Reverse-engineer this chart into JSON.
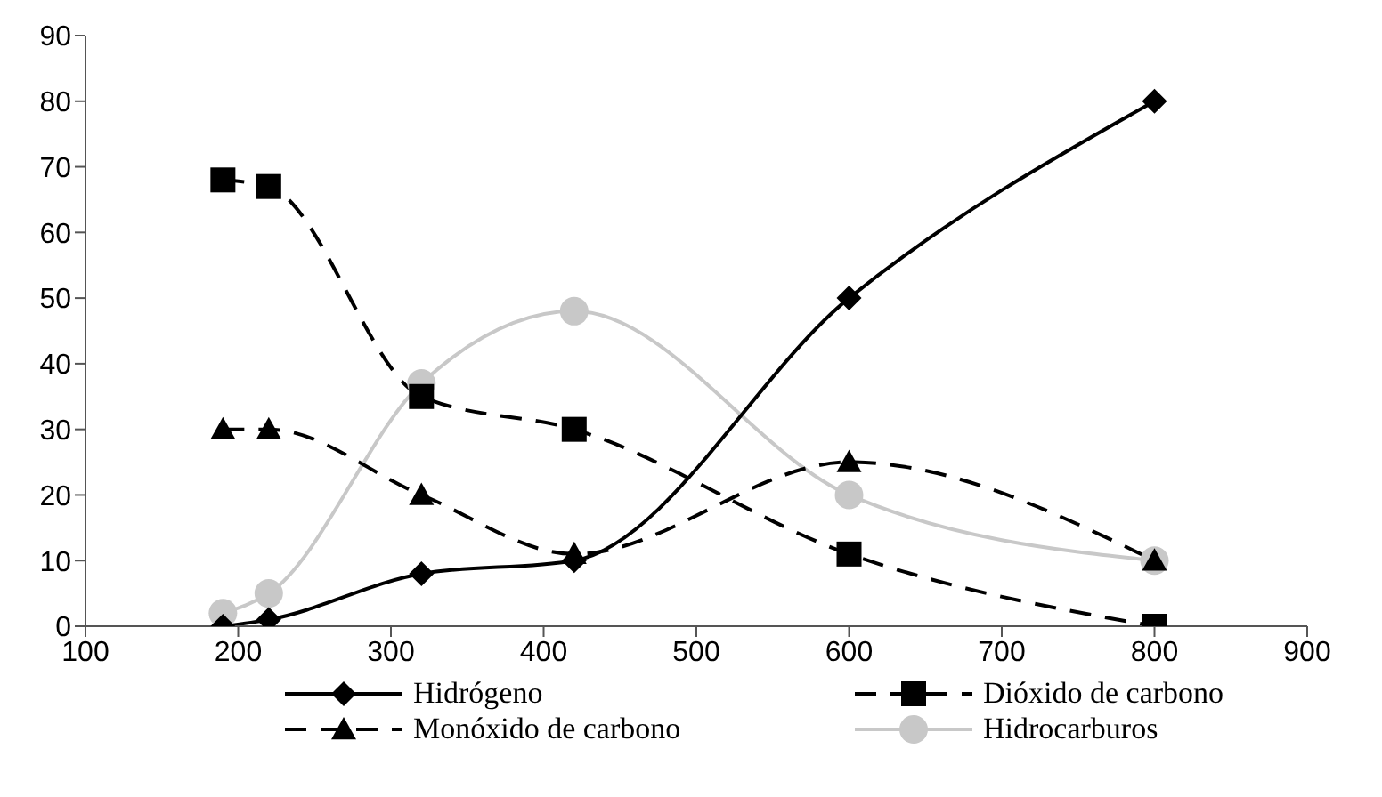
{
  "chart_data": {
    "type": "line",
    "x": [
      190,
      220,
      320,
      420,
      600,
      800
    ],
    "xlim": [
      100,
      900
    ],
    "xticks": [
      100,
      200,
      300,
      400,
      500,
      600,
      700,
      800,
      900
    ],
    "ylim": [
      0,
      90
    ],
    "yticks": [
      0,
      10,
      20,
      30,
      40,
      50,
      60,
      70,
      80,
      90
    ],
    "grid": false,
    "legend": "bottom",
    "series": [
      {
        "name": "Hidrógeno",
        "color": "#000000",
        "marker": "diamond",
        "line_style": "solid",
        "values": [
          0,
          1,
          8,
          10,
          50,
          80
        ]
      },
      {
        "name": "Dióxido de carbono",
        "color": "#000000",
        "marker": "square",
        "line_style": "dashed",
        "values": [
          68,
          67,
          35,
          30,
          11,
          0
        ]
      },
      {
        "name": "Monóxido de carbono",
        "color": "#000000",
        "marker": "triangle",
        "line_style": "dashed",
        "values": [
          30,
          30,
          20,
          11,
          25,
          10
        ]
      },
      {
        "name": "Hidrocarburos",
        "color": "#c8c8c8",
        "marker": "circle",
        "line_style": "solid",
        "values": [
          2,
          5,
          37,
          48,
          20,
          10
        ]
      }
    ]
  }
}
